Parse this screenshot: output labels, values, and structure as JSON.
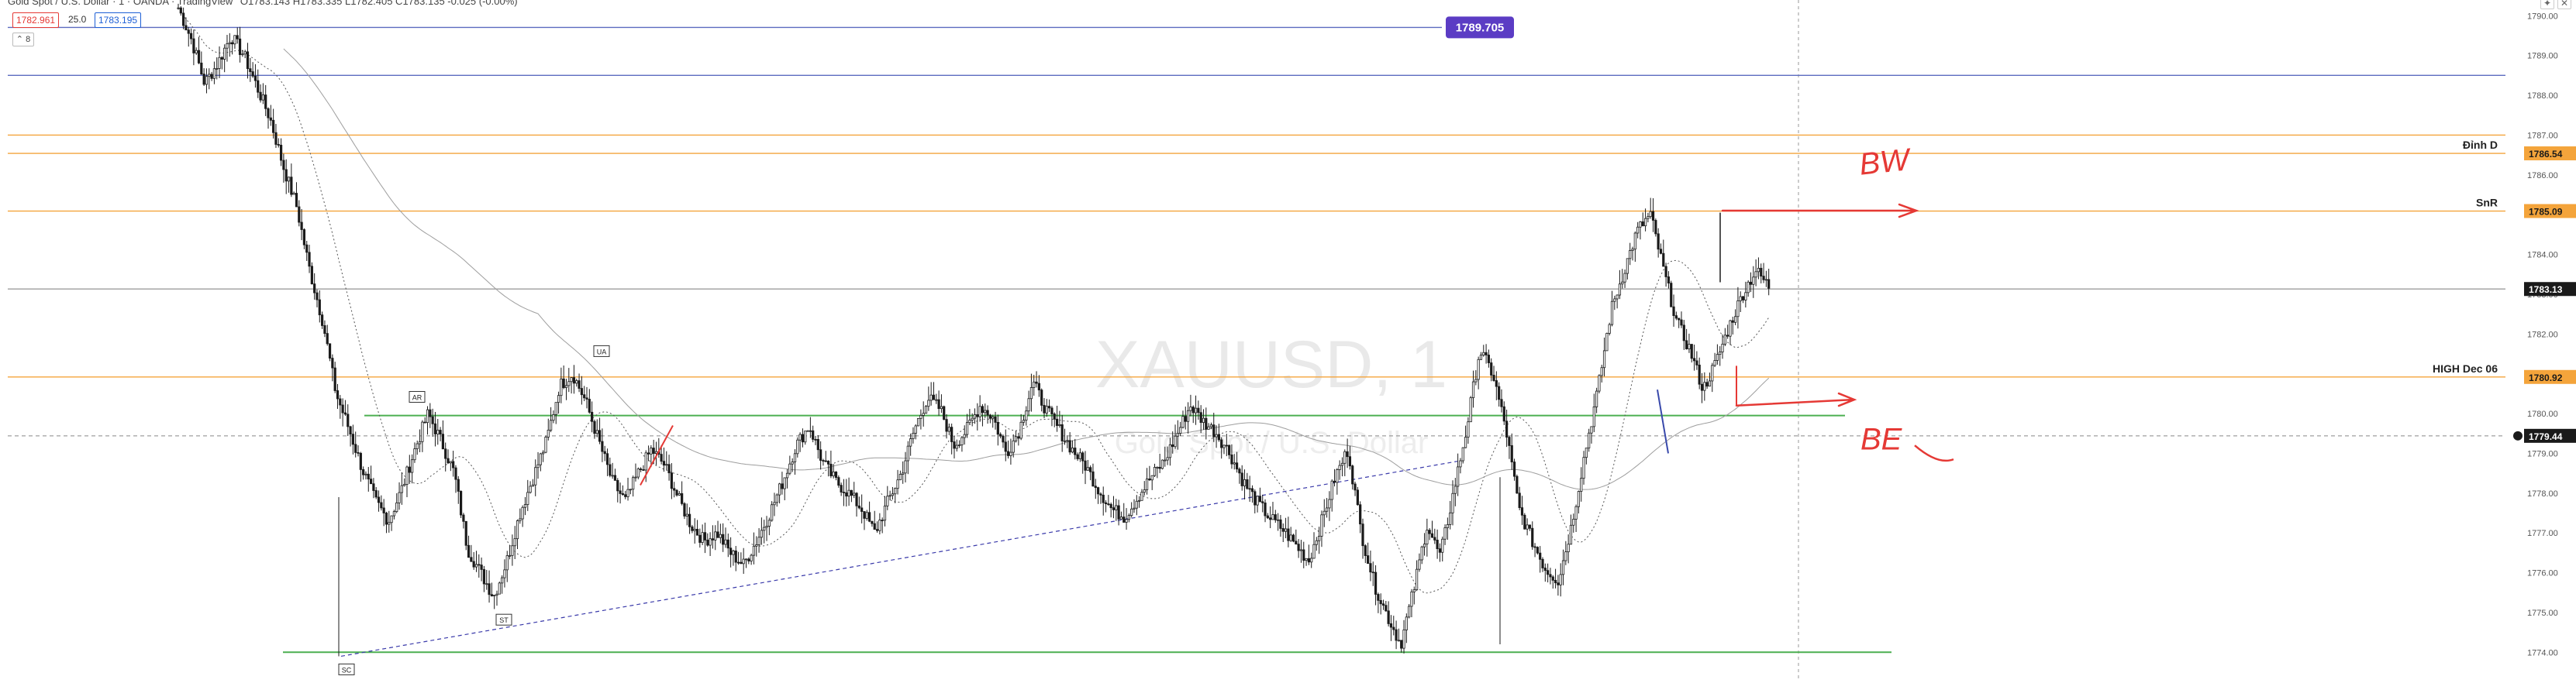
{
  "header": {
    "symbol": "Gold Spot / U.S. Dollar · 1 · OANDA · TradingView",
    "ohlc": "O1783.143 H1783.335 L1782.405 C1783.135 -0.025 (-0.00%)",
    "bid": "1782.961",
    "spread": "25.0",
    "ask": "1783.195",
    "collapse_label": "⌃ 8"
  },
  "watermark": {
    "symbol": "XAUUSD, 1",
    "name": "Gold Spot / U.S. Dollar"
  },
  "colors": {
    "candle": "#1a1a1a",
    "orange_line": "#f4a43b",
    "green_line": "#4caf50",
    "blue_line": "#5c6bc0",
    "annotation_red": "#e53935",
    "purple_label": "#5b3cc4"
  },
  "chart_data": {
    "type": "candlestick",
    "y_axis": {
      "range": [
        1773.5,
        1790.2
      ],
      "ticks": [
        "1790.00",
        "1789.00",
        "1788.00",
        "1787.00",
        "1786.00",
        "1785.00",
        "1784.00",
        "1783.00",
        "1782.00",
        "1781.00",
        "1780.00",
        "1779.00",
        "1778.00",
        "1777.00",
        "1776.00",
        "1775.00",
        "1774.00"
      ]
    },
    "ohlc_close_path": [
      1790.2,
      1789.4,
      1788.3,
      1788.8,
      1789.5,
      1789.0,
      1788.2,
      1787.4,
      1786.2,
      1785.2,
      1783.6,
      1782.3,
      1780.5,
      1779.6,
      1778.6,
      1777.8,
      1777.3,
      1778.1,
      1779.1,
      1780.0,
      1779.3,
      1778.5,
      1776.6,
      1776.0,
      1775.4,
      1776.3,
      1777.5,
      1778.4,
      1779.3,
      1780.7,
      1781.0,
      1780.3,
      1779.3,
      1778.3,
      1777.8,
      1778.5,
      1779.1,
      1778.7,
      1777.9,
      1777.2,
      1776.8,
      1777.0,
      1776.5,
      1776.2,
      1776.8,
      1777.5,
      1778.3,
      1779.2,
      1779.7,
      1778.8,
      1778.3,
      1778.0,
      1777.6,
      1777.0,
      1777.8,
      1778.5,
      1779.6,
      1780.4,
      1780.1,
      1779.2,
      1779.6,
      1780.2,
      1779.9,
      1779.0,
      1779.6,
      1780.8,
      1780.1,
      1779.6,
      1779.1,
      1778.7,
      1778.1,
      1777.6,
      1777.4,
      1777.9,
      1778.4,
      1778.8,
      1779.5,
      1780.2,
      1779.8,
      1779.5,
      1779.0,
      1778.3,
      1777.8,
      1777.4,
      1777.1,
      1776.7,
      1776.3,
      1777.3,
      1778.4,
      1779.1,
      1777.0,
      1775.7,
      1774.9,
      1774.2,
      1775.6,
      1777.2,
      1776.4,
      1778.0,
      1779.6,
      1781.6,
      1781.0,
      1779.6,
      1777.6,
      1776.8,
      1776.1,
      1775.8,
      1777.2,
      1779.0,
      1780.6,
      1782.6,
      1783.6,
      1784.6,
      1785.0,
      1783.6,
      1782.3,
      1781.6,
      1780.6,
      1781.3,
      1782.2,
      1783.0,
      1783.6,
      1783.2
    ],
    "horizontal_levels": [
      {
        "price": 1789.705,
        "color": "#5c6bc0",
        "label": "1789.705"
      },
      {
        "price": 1788.5,
        "color": "#5c6bc0"
      },
      {
        "price": 1787.0,
        "color": "#f4a43b"
      },
      {
        "price": 1786.54,
        "color": "#f4a43b",
        "label": "Đỉnh D"
      },
      {
        "price": 1785.09,
        "color": "#f4a43b",
        "label": "SnR"
      },
      {
        "price": 1783.13,
        "color": "#9e9e9e"
      },
      {
        "price": 1780.92,
        "color": "#f4a43b",
        "label": "HIGH Dec 06"
      },
      {
        "price": 1779.95,
        "color": "#4caf50"
      },
      {
        "price": 1774.0,
        "color": "#4caf50"
      }
    ],
    "price_labels": [
      {
        "price": 1786.54,
        "text": "1786.54",
        "bg": "#f4a43b",
        "fg": "#1a1a1a"
      },
      {
        "price": 1785.09,
        "text": "1785.09",
        "bg": "#f4a43b",
        "fg": "#1a1a1a"
      },
      {
        "price": 1783.13,
        "text": "1783.13",
        "bg": "#1a1a1a",
        "fg": "#ffffff"
      },
      {
        "price": 1780.92,
        "text": "1780.92",
        "bg": "#f4a43b",
        "fg": "#1a1a1a"
      },
      {
        "price": 1779.44,
        "text": "1779.44",
        "bg": "#1a1a1a",
        "fg": "#ffffff"
      }
    ],
    "wyckoff_labels": [
      "AR",
      "UA",
      "ST",
      "SC"
    ],
    "annotations": [
      "BW",
      "BE"
    ]
  }
}
